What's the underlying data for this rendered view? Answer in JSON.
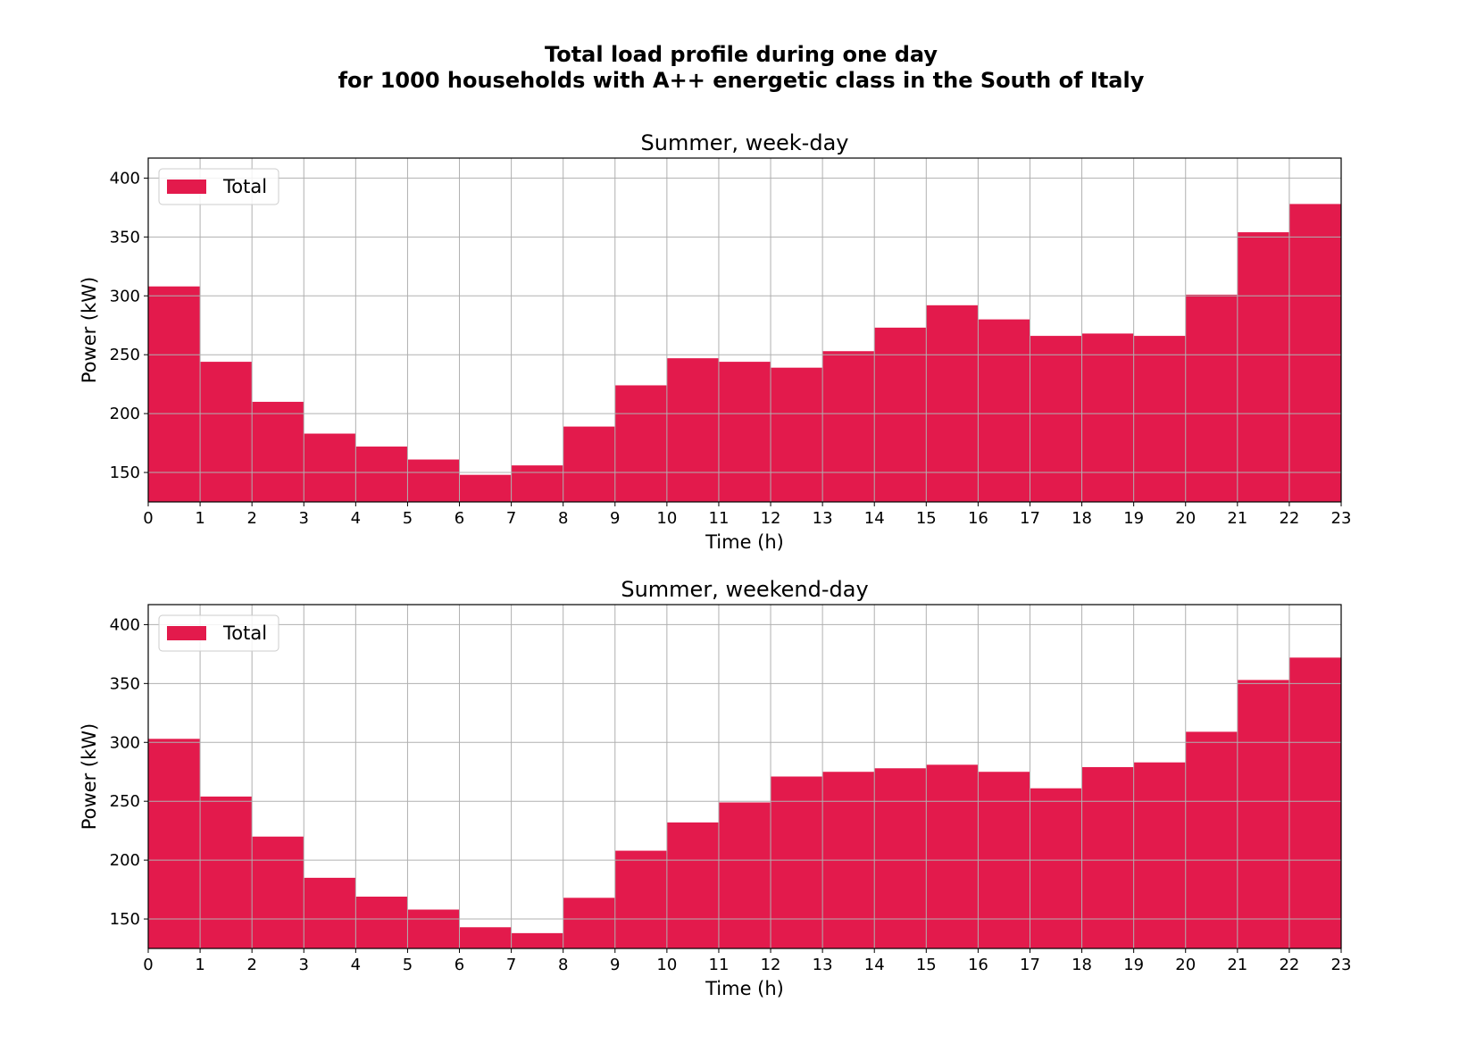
{
  "figure": {
    "title_line1": "Total load profile during one day",
    "title_line2": "for 1000 households with A++ energetic class in the South of Italy"
  },
  "colors": {
    "bar": "#e31a4c",
    "grid": "#b0b0b0",
    "axes": "#000000"
  },
  "chart_data": [
    {
      "type": "bar",
      "title": "Summer, week-day",
      "xlabel": "Time (h)",
      "ylabel": "Power (kW)",
      "legend": [
        "Total"
      ],
      "legend_position": "upper left",
      "grid": true,
      "xlim": [
        0,
        23
      ],
      "ylim": [
        125,
        417
      ],
      "xticks": [
        0,
        1,
        2,
        3,
        4,
        5,
        6,
        7,
        8,
        9,
        10,
        11,
        12,
        13,
        14,
        15,
        16,
        17,
        18,
        19,
        20,
        21,
        22,
        23
      ],
      "yticks": [
        150,
        200,
        250,
        300,
        350,
        400
      ],
      "x": [
        0,
        1,
        2,
        3,
        4,
        5,
        6,
        7,
        8,
        9,
        10,
        11,
        12,
        13,
        14,
        15,
        16,
        17,
        18,
        19,
        20,
        21,
        22
      ],
      "values": [
        308,
        244,
        210,
        183,
        172,
        161,
        148,
        156,
        189,
        224,
        247,
        244,
        239,
        253,
        273,
        292,
        280,
        266,
        268,
        266,
        301,
        354,
        378
      ],
      "series": [
        {
          "name": "Total",
          "values": [
            308,
            244,
            210,
            183,
            172,
            161,
            148,
            156,
            189,
            224,
            247,
            244,
            239,
            253,
            273,
            292,
            280,
            266,
            268,
            266,
            301,
            354,
            378
          ]
        }
      ]
    },
    {
      "type": "bar",
      "title": "Summer, weekend-day",
      "xlabel": "Time (h)",
      "ylabel": "Power (kW)",
      "legend": [
        "Total"
      ],
      "legend_position": "upper left",
      "grid": true,
      "xlim": [
        0,
        23
      ],
      "ylim": [
        125,
        417
      ],
      "xticks": [
        0,
        1,
        2,
        3,
        4,
        5,
        6,
        7,
        8,
        9,
        10,
        11,
        12,
        13,
        14,
        15,
        16,
        17,
        18,
        19,
        20,
        21,
        22,
        23
      ],
      "yticks": [
        150,
        200,
        250,
        300,
        350,
        400
      ],
      "x": [
        0,
        1,
        2,
        3,
        4,
        5,
        6,
        7,
        8,
        9,
        10,
        11,
        12,
        13,
        14,
        15,
        16,
        17,
        18,
        19,
        20,
        21,
        22
      ],
      "values": [
        303,
        254,
        220,
        185,
        169,
        158,
        143,
        138,
        168,
        208,
        232,
        249,
        271,
        275,
        278,
        281,
        275,
        261,
        279,
        283,
        309,
        353,
        372
      ],
      "series": [
        {
          "name": "Total",
          "values": [
            303,
            254,
            220,
            185,
            169,
            158,
            143,
            138,
            168,
            208,
            232,
            249,
            271,
            275,
            278,
            281,
            275,
            261,
            279,
            283,
            309,
            353,
            372
          ]
        }
      ]
    }
  ]
}
